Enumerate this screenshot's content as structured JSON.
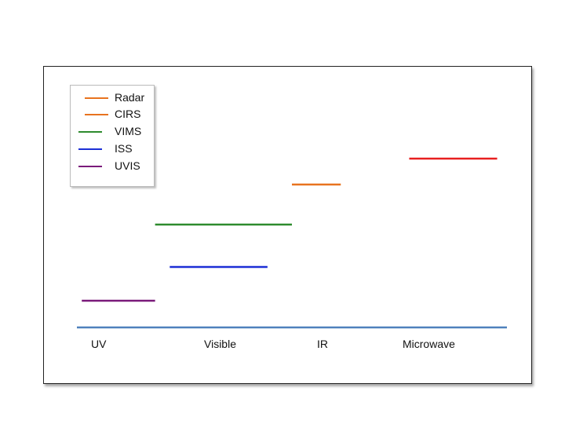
{
  "chart_data": {
    "type": "range-bar",
    "categories": [
      "UV",
      "Visible",
      "IR",
      "Microwave"
    ],
    "series": [
      {
        "name": "Radar",
        "color": "#e8731f",
        "start": 3.2,
        "end": 3.9,
        "level": 5
      },
      {
        "name": "CIRS",
        "color": "#e8731f",
        "start": 2.0,
        "end": 2.5,
        "level": 4
      },
      {
        "name": "VIMS",
        "color": "#2e8b2e",
        "start": 0.6,
        "end": 2.0,
        "level": 3
      },
      {
        "name": "ISS",
        "color": "#1c2fd6",
        "start": 0.75,
        "end": 1.75,
        "level": 2
      },
      {
        "name": "UVIS",
        "color": "#7a1a7a",
        "start": -0.15,
        "end": 0.6,
        "level": 1
      }
    ],
    "microwave_bar": {
      "color": "#e82020",
      "start": 3.2,
      "end": 4.1,
      "level": 5
    },
    "axis_color": "#4f81bd",
    "xlim": [
      -0.2,
      4.2
    ],
    "legend_position": "top-left",
    "grid": false
  }
}
